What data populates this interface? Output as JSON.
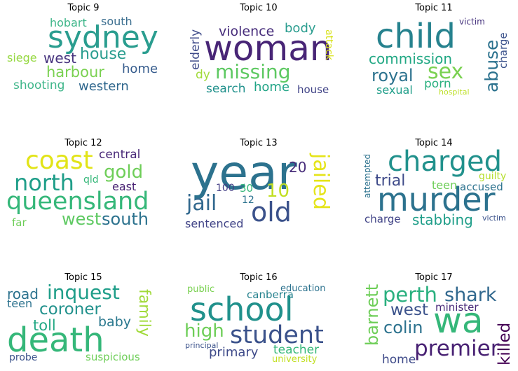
{
  "panels": [
    {
      "title": "Topic 9",
      "words": [
        {
          "text": "sydney",
          "color": "#2a9d8f"
        },
        {
          "text": "hobart",
          "color": "#3fb68a"
        },
        {
          "text": "south",
          "color": "#3b6e8f"
        },
        {
          "text": "house",
          "color": "#2a9d8f"
        },
        {
          "text": "west",
          "color": "#46337e"
        },
        {
          "text": "siege",
          "color": "#95d840"
        },
        {
          "text": "home",
          "color": "#365c8d"
        },
        {
          "text": "harbour",
          "color": "#7ad151"
        },
        {
          "text": "shooting",
          "color": "#3fb68a"
        },
        {
          "text": "western",
          "color": "#31688e"
        }
      ]
    },
    {
      "title": "Topic 10",
      "words": [
        {
          "text": "woman",
          "color": "#482576"
        },
        {
          "text": "violence",
          "color": "#472d7b"
        },
        {
          "text": "body",
          "color": "#2a9d8f"
        },
        {
          "text": "elderly",
          "color": "#3e4a89"
        },
        {
          "text": "attack",
          "color": "#d8e219"
        },
        {
          "text": "missing",
          "color": "#5ec962"
        },
        {
          "text": "dy",
          "color": "#a0da39"
        },
        {
          "text": "search",
          "color": "#21918c"
        },
        {
          "text": "home",
          "color": "#20a486"
        },
        {
          "text": "house",
          "color": "#414487"
        }
      ]
    },
    {
      "title": "Topic 11",
      "words": [
        {
          "text": "child",
          "color": "#26828e"
        },
        {
          "text": "victim",
          "color": "#46337e"
        },
        {
          "text": "abuse",
          "color": "#2c728e"
        },
        {
          "text": "charge",
          "color": "#3b528b"
        },
        {
          "text": "commission",
          "color": "#22a884"
        },
        {
          "text": "royal",
          "color": "#2c728e"
        },
        {
          "text": "sex",
          "color": "#7ad151"
        },
        {
          "text": "porn",
          "color": "#2ab07f"
        },
        {
          "text": "sexual",
          "color": "#1f9e89"
        },
        {
          "text": "hospital",
          "color": "#bddf26"
        }
      ]
    },
    {
      "title": "Topic 12",
      "words": [
        {
          "text": "coast",
          "color": "#e2e418"
        },
        {
          "text": "central",
          "color": "#482878"
        },
        {
          "text": "gold",
          "color": "#6ece58"
        },
        {
          "text": "north",
          "color": "#1f9e89"
        },
        {
          "text": "qld",
          "color": "#35b779"
        },
        {
          "text": "east",
          "color": "#482173"
        },
        {
          "text": "queensland",
          "color": "#35b779"
        },
        {
          "text": "far",
          "color": "#6ece58"
        },
        {
          "text": "west",
          "color": "#5ec962"
        },
        {
          "text": "south",
          "color": "#2c728e"
        }
      ]
    },
    {
      "title": "Topic 13",
      "words": [
        {
          "text": "year",
          "color": "#2c728e"
        },
        {
          "text": "20",
          "color": "#472c7a"
        },
        {
          "text": "jailed",
          "color": "#e5e419"
        },
        {
          "text": "10",
          "color": "#c2df23"
        },
        {
          "text": "100",
          "color": "#433e85"
        },
        {
          "text": "30",
          "color": "#35b779"
        },
        {
          "text": "jail",
          "color": "#31688e"
        },
        {
          "text": "12",
          "color": "#2c728e"
        },
        {
          "text": "old",
          "color": "#3b528b"
        },
        {
          "text": "sentenced",
          "color": "#414487"
        }
      ]
    },
    {
      "title": "Topic 14",
      "words": [
        {
          "text": "charged",
          "color": "#21918c"
        },
        {
          "text": "attempted",
          "color": "#2c728e"
        },
        {
          "text": "trial",
          "color": "#3e4a89"
        },
        {
          "text": "teen",
          "color": "#6ece58"
        },
        {
          "text": "guilty",
          "color": "#b5de2b"
        },
        {
          "text": "accused",
          "color": "#2c728e"
        },
        {
          "text": "murder",
          "color": "#2c728e"
        },
        {
          "text": "charge",
          "color": "#414487"
        },
        {
          "text": "stabbing",
          "color": "#1f9e89"
        },
        {
          "text": "victim",
          "color": "#3b528b"
        }
      ]
    },
    {
      "title": "Topic 15",
      "words": [
        {
          "text": "road",
          "color": "#2c728e"
        },
        {
          "text": "inquest",
          "color": "#1f9e89"
        },
        {
          "text": "teen",
          "color": "#2c728e"
        },
        {
          "text": "coroner",
          "color": "#21918c"
        },
        {
          "text": "family",
          "color": "#a0da39"
        },
        {
          "text": "toll",
          "color": "#22a884"
        },
        {
          "text": "baby",
          "color": "#2a788e"
        },
        {
          "text": "death",
          "color": "#35b779"
        },
        {
          "text": "probe",
          "color": "#3b528b"
        },
        {
          "text": "suspicious",
          "color": "#6ece58"
        }
      ]
    },
    {
      "title": "Topic 16",
      "words": [
        {
          "text": "public",
          "color": "#7ad151"
        },
        {
          "text": "education",
          "color": "#2c728e"
        },
        {
          "text": "canberra",
          "color": "#26828e"
        },
        {
          "text": "school",
          "color": "#21918c"
        },
        {
          "text": "high",
          "color": "#6ece58"
        },
        {
          "text": "student",
          "color": "#3b528b"
        },
        {
          "text": "principal",
          "color": "#3b528b"
        },
        {
          "text": "primary",
          "color": "#3e4a89"
        },
        {
          "text": "teacher",
          "color": "#35b779"
        },
        {
          "text": "university",
          "color": "#c2df23"
        }
      ]
    },
    {
      "title": "Topic 17",
      "words": [
        {
          "text": "perth",
          "color": "#2ab07f"
        },
        {
          "text": "shark",
          "color": "#31688e"
        },
        {
          "text": "barnett",
          "color": "#6ece58"
        },
        {
          "text": "minister",
          "color": "#482878"
        },
        {
          "text": "west",
          "color": "#3b528b"
        },
        {
          "text": "wa",
          "color": "#35b779"
        },
        {
          "text": "colin",
          "color": "#2c728e"
        },
        {
          "text": "killed",
          "color": "#440154"
        },
        {
          "text": "premier",
          "color": "#482173"
        },
        {
          "text": "home",
          "color": "#3e4a89"
        }
      ]
    }
  ]
}
